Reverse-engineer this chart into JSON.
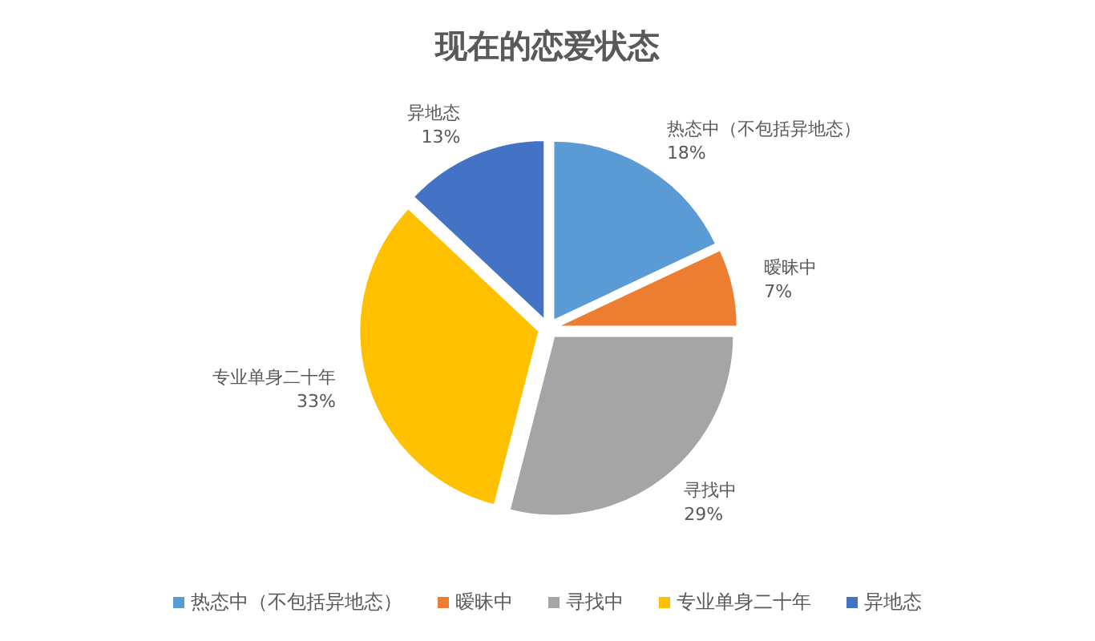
{
  "chart_data": {
    "type": "pie",
    "title": "现在的恋爱状态",
    "categories": [
      "热态中（不包括异地态）",
      "暧昧中",
      "寻找中",
      "专业单身二十年",
      "异地态"
    ],
    "values": [
      18,
      7,
      29,
      33,
      13
    ],
    "colors": [
      "#5b9bd5",
      "#ed7d31",
      "#a5a5a5",
      "#ffc000",
      "#4472c4"
    ],
    "value_labels": [
      "18%",
      "7%",
      "29%",
      "33%",
      "13%"
    ],
    "legend": "bottom"
  }
}
